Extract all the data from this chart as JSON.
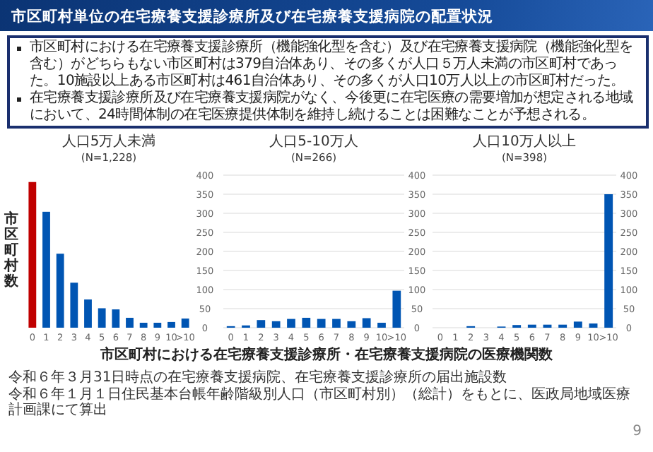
{
  "chart_data": [
    {
      "type": "other",
      "title": "市区町村単位の在宅療養支援診療所及び在宅療養支援病院の配置状況",
      "annotations": [
        "市区町村における在宅療養支援診療所（機能強化型を含む）及び在宅療養支援病院（機能強化型を含む）がどちらもない市区町村は379自治体あり、その多くが人口５万人未満の市区町村であった。10施設以上ある市区町村は461自治体あり、その多くが人口10万人以上の市区町村だった。",
        "在宅療養支援診療所及び在宅療養支援病院がなく、今後更に在宅医療の需要増加が想定される地域において、24時間体制の在宅医療提供体制を維持し続けることは困難なことが予想される。"
      ]
    },
    {
      "type": "bar",
      "title": "人口5万人未満",
      "subtitle": "(N=1,228)",
      "ylabel": "市区町村数",
      "categories": [
        "0",
        "1",
        "2",
        "3",
        "4",
        "5",
        "6",
        "7",
        "8",
        "9",
        "10",
        ">10"
      ],
      "values": [
        382,
        304,
        194,
        118,
        74,
        51,
        48,
        26,
        13,
        13,
        15,
        24
      ],
      "colors": [
        "#c00000",
        "#0055b3",
        "#0055b3",
        "#0055b3",
        "#0055b3",
        "#0055b3",
        "#0055b3",
        "#0055b3",
        "#0055b3",
        "#0055b3",
        "#0055b3",
        "#0055b3"
      ],
      "ylim": [
        0,
        400
      ],
      "yticks": [
        0,
        50,
        100,
        150,
        200,
        250,
        300,
        350,
        400
      ],
      "grid": false,
      "annotations": [
        "令和６年３月31日時点の在宅療養支援病院、在宅療養支援診療所の届出施設数",
        "令和６年１月１日住民基本台帳年齢階級別人口（市区町村別）（総計）をもとに、医政局地域医療計画課にて算出"
      ]
    },
    {
      "type": "bar",
      "title": "人口5-10万人",
      "subtitle": "(N=266)",
      "xlabel": "市区町村における在宅療養支援診療所・在宅療養支援病院の医療機関数",
      "categories": [
        "0",
        "1",
        "2",
        "3",
        "4",
        "5",
        "6",
        "7",
        "8",
        "9",
        "10",
        ">10"
      ],
      "values": [
        4,
        6,
        20,
        17,
        23,
        26,
        23,
        23,
        17,
        25,
        13,
        97
      ],
      "color": "#0055b3",
      "ylim": [
        0,
        400
      ],
      "yticks": [
        0,
        50,
        100,
        150,
        200,
        250,
        300,
        350,
        400
      ],
      "grid": "y"
    },
    {
      "type": "bar",
      "title": "人口10万人以上",
      "subtitle": "(N=398)",
      "categories": [
        "0",
        "1",
        "2",
        "3",
        "4",
        "5",
        "6",
        "7",
        "8",
        "9",
        "10",
        ">10"
      ],
      "values": [
        0,
        0,
        4,
        0,
        3,
        7,
        8,
        8,
        8,
        16,
        11,
        350
      ],
      "color": "#0055b3",
      "ylim": [
        0,
        400
      ],
      "yticks": [
        0,
        50,
        100,
        150,
        200,
        250,
        300,
        350,
        400
      ],
      "grid": "y",
      "annotations": [
        "9"
      ]
    }
  ]
}
